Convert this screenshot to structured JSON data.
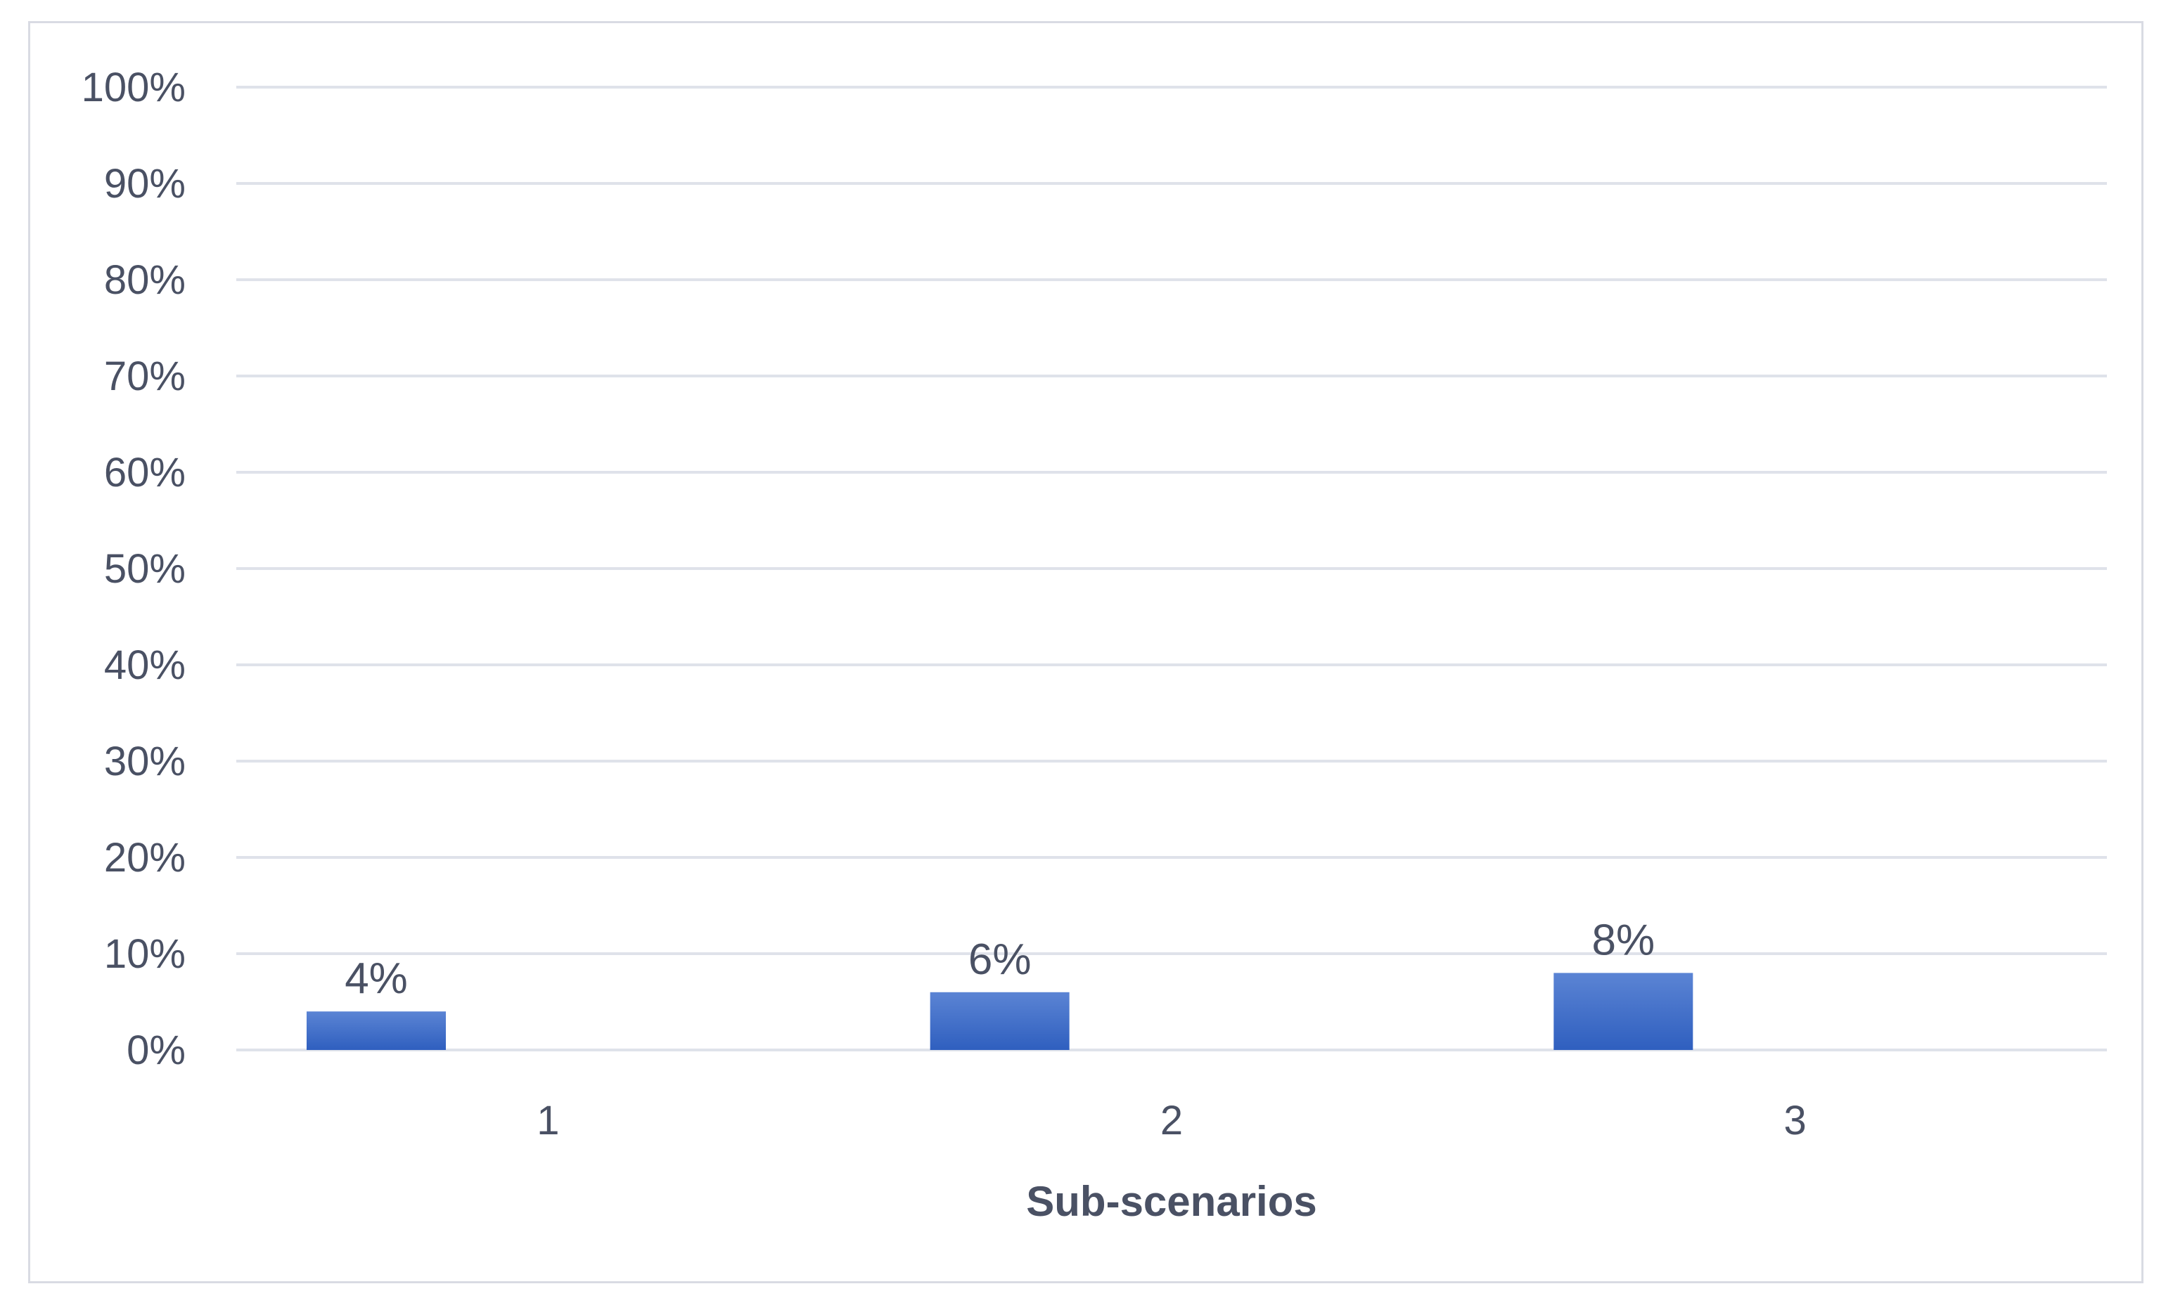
{
  "chart_data": {
    "type": "bar",
    "categories": [
      "1",
      "2",
      "3"
    ],
    "series": [
      {
        "values": [
          4,
          6,
          8
        ]
      }
    ],
    "data_labels": [
      "4%",
      "6%",
      "8%"
    ],
    "title": "",
    "xlabel": "Sub-scenarios",
    "ylabel": "",
    "ylim": [
      0,
      100
    ],
    "yticks": [
      0,
      10,
      20,
      30,
      40,
      50,
      60,
      70,
      80,
      90,
      100
    ],
    "ytick_labels": [
      "0%",
      "10%",
      "20%",
      "30%",
      "40%",
      "50%",
      "60%",
      "70%",
      "80%",
      "90%",
      "100%"
    ],
    "grid": true,
    "legend": "none",
    "colors": {
      "bar_top": "#5b84d4",
      "bar_bottom": "#2f5fbf",
      "grid": "#dfe2ea",
      "text": "#4a5164",
      "frame": "#d9dbe3"
    }
  }
}
